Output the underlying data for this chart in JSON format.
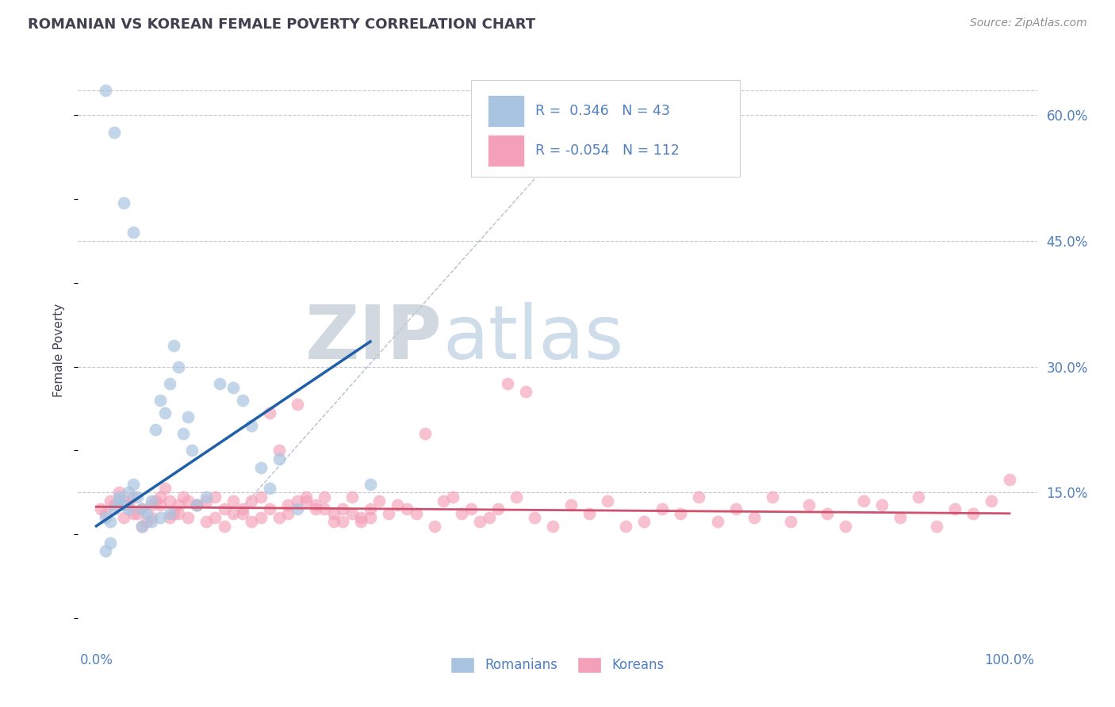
{
  "title": "ROMANIAN VS KOREAN FEMALE POVERTY CORRELATION CHART",
  "source": "Source: ZipAtlas.com",
  "ylabel": "Female Poverty",
  "ytick_positions": [
    15,
    30,
    45,
    60
  ],
  "ytick_labels": [
    "15.0%",
    "30.0%",
    "45.0%",
    "60.0%"
  ],
  "watermark_zip": "ZIP",
  "watermark_atlas": "atlas",
  "legend_R_romanian": "0.346",
  "legend_N_romanian": "43",
  "legend_R_korean": "-0.054",
  "legend_N_korean": "112",
  "romanian_color": "#a8c4e0",
  "korean_color": "#f4a0b8",
  "romanian_line_color": "#2060a8",
  "korean_line_color": "#d05070",
  "dashed_line_color": "#b0b8c8",
  "bg_color": "#ffffff",
  "grid_color": "#c8c8d0",
  "title_color": "#404050",
  "axis_label_color": "#5080c0",
  "romanian_x": [
    1.0,
    1.5,
    2.0,
    2.5,
    3.0,
    3.5,
    4.0,
    4.5,
    5.0,
    5.5,
    6.0,
    6.5,
    7.0,
    7.5,
    8.0,
    8.5,
    9.0,
    9.5,
    10.0,
    10.5,
    11.0,
    12.0,
    13.5,
    15.0,
    16.0,
    17.0,
    18.0,
    19.0,
    20.0,
    22.0,
    1.0,
    2.0,
    3.0,
    4.0,
    5.0,
    6.0,
    7.0,
    8.0,
    3.5,
    2.5,
    1.5,
    30.0,
    1.0
  ],
  "romanian_y": [
    12.0,
    11.5,
    13.0,
    14.5,
    13.5,
    15.0,
    16.0,
    14.5,
    13.0,
    12.5,
    14.0,
    22.5,
    26.0,
    24.5,
    28.0,
    32.5,
    30.0,
    22.0,
    24.0,
    20.0,
    13.5,
    14.5,
    28.0,
    27.5,
    26.0,
    23.0,
    18.0,
    15.5,
    19.0,
    13.0,
    63.0,
    58.0,
    49.5,
    46.0,
    11.0,
    11.5,
    12.0,
    12.5,
    13.0,
    14.0,
    9.0,
    16.0,
    8.0
  ],
  "korean_x": [
    0.5,
    1.0,
    1.5,
    2.0,
    2.5,
    3.0,
    3.5,
    4.0,
    4.5,
    5.0,
    5.5,
    6.0,
    6.5,
    7.0,
    7.5,
    8.0,
    8.5,
    9.0,
    9.5,
    10.0,
    11.0,
    12.0,
    13.0,
    14.0,
    15.0,
    16.0,
    17.0,
    18.0,
    19.0,
    20.0,
    21.0,
    22.0,
    23.0,
    24.0,
    25.0,
    26.0,
    27.0,
    28.0,
    29.0,
    30.0,
    32.0,
    34.0,
    36.0,
    38.0,
    40.0,
    42.0,
    44.0,
    46.0,
    48.0,
    50.0,
    52.0,
    54.0,
    56.0,
    58.0,
    60.0,
    62.0,
    64.0,
    66.0,
    68.0,
    70.0,
    72.0,
    74.0,
    76.0,
    78.0,
    80.0,
    82.0,
    84.0,
    86.0,
    88.0,
    90.0,
    92.0,
    94.0,
    96.0,
    98.0,
    100.0,
    6.0,
    8.0,
    10.0,
    12.0,
    14.0,
    16.0,
    18.0,
    20.0,
    22.0,
    24.0,
    26.0,
    28.0,
    30.0,
    3.0,
    4.0,
    5.0,
    7.0,
    9.0,
    11.0,
    13.0,
    15.0,
    17.0,
    19.0,
    21.0,
    23.0,
    25.0,
    27.0,
    29.0,
    31.0,
    33.0,
    35.0,
    37.0,
    39.0,
    41.0,
    43.0,
    45.0,
    47.0
  ],
  "korean_y": [
    13.0,
    12.5,
    14.0,
    13.5,
    15.0,
    12.0,
    13.5,
    14.5,
    12.5,
    13.0,
    11.5,
    12.0,
    14.0,
    13.5,
    15.5,
    14.0,
    12.5,
    13.5,
    14.5,
    12.0,
    13.5,
    14.0,
    14.5,
    11.0,
    12.5,
    13.0,
    14.0,
    12.0,
    24.5,
    20.0,
    13.5,
    25.5,
    14.0,
    13.0,
    14.5,
    12.5,
    13.0,
    14.5,
    11.5,
    12.0,
    12.5,
    13.0,
    22.0,
    14.0,
    12.5,
    11.5,
    13.0,
    14.5,
    12.0,
    11.0,
    13.5,
    12.5,
    14.0,
    11.0,
    11.5,
    13.0,
    12.5,
    14.5,
    11.5,
    13.0,
    12.0,
    14.5,
    11.5,
    13.5,
    12.5,
    11.0,
    14.0,
    13.5,
    12.0,
    14.5,
    11.0,
    13.0,
    12.5,
    14.0,
    16.5,
    13.5,
    12.0,
    14.0,
    11.5,
    13.0,
    12.5,
    14.5,
    12.0,
    14.0,
    13.5,
    11.5,
    12.5,
    13.0,
    14.0,
    12.5,
    11.0,
    14.5,
    12.5,
    13.5,
    12.0,
    14.0,
    11.5,
    13.0,
    12.5,
    14.5,
    13.0,
    11.5,
    12.0,
    14.0,
    13.5,
    12.5,
    11.0,
    14.5,
    13.0,
    12.0,
    28.0,
    27.0
  ]
}
